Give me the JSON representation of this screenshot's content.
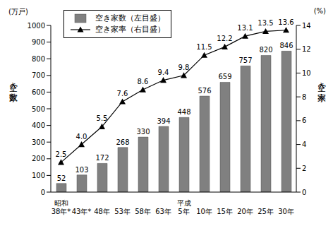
{
  "chart_data": {
    "type": "bar",
    "categories": [
      "昭和\n38年*",
      "43年*",
      "48年",
      "53年",
      "58年",
      "63年",
      "平成\n5年",
      "10年",
      "15年",
      "20年",
      "25年",
      "30年"
    ],
    "series": [
      {
        "name": "空き家数（左目盛）",
        "type": "bar",
        "color": "#808080",
        "values": [
          52,
          103,
          172,
          268,
          330,
          394,
          448,
          576,
          659,
          757,
          820,
          846
        ]
      },
      {
        "name": "空き家率（右目盛）",
        "type": "line",
        "axis": "y2",
        "color": "#000000",
        "marker": "triangle",
        "values": [
          2.5,
          4.0,
          5.5,
          7.6,
          8.6,
          9.4,
          9.8,
          11.5,
          12.2,
          13.1,
          13.5,
          13.6
        ],
        "value_labels": [
          "2.5",
          "4.0",
          "5.5",
          "7.6",
          "8.6",
          "9.4",
          "9.8",
          "11.5",
          "12.2",
          "13.1",
          "13.5",
          "13.6"
        ]
      }
    ],
    "ylabel": "空き家数",
    "yunit": "(万戸)",
    "y2label": "空き家率",
    "y2unit": "(%)",
    "ylim": [
      0,
      1000
    ],
    "yticks": [
      0,
      100,
      200,
      300,
      400,
      500,
      600,
      700,
      800,
      900,
      1000
    ],
    "y2lim": [
      0,
      14
    ],
    "y2ticks": [
      0,
      2,
      4,
      6,
      8,
      10,
      12,
      14
    ],
    "grid": false,
    "legend": "upper left",
    "data_labels": true
  }
}
